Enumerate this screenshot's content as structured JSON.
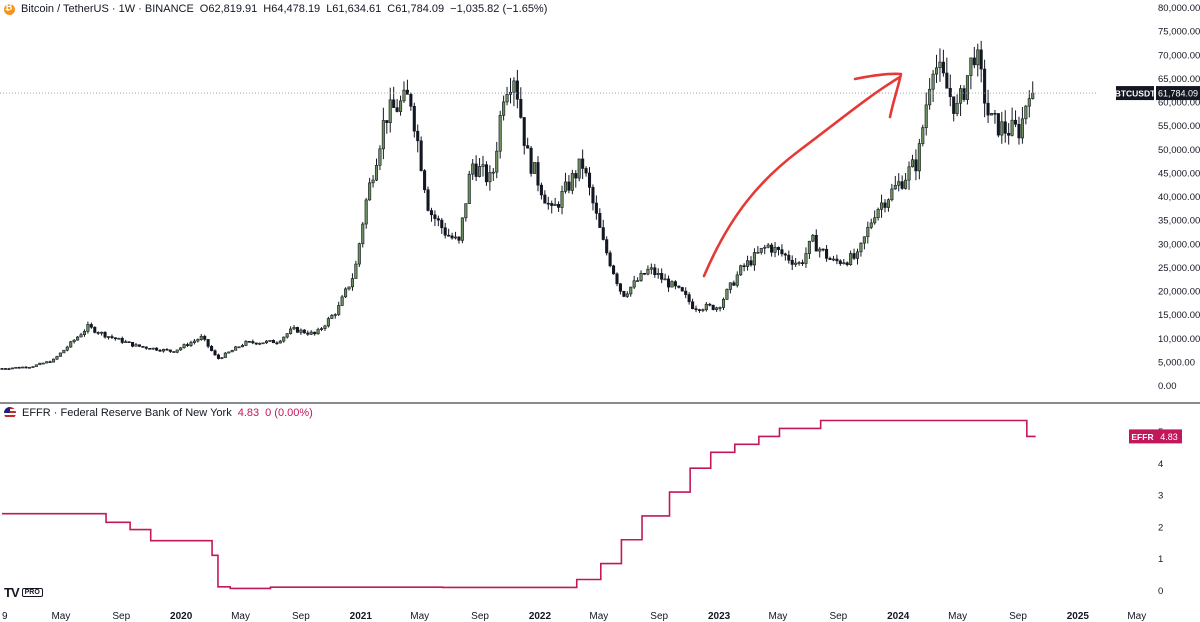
{
  "header": {
    "symbol": "Bitcoin / TetherUS · 1W · BINANCE",
    "open": "O62,819.91",
    "high": "H64,478.19",
    "low": "L61,634.61",
    "close": "C61,784.09",
    "change": "−1,035.82 (−1.65%)"
  },
  "indicator": {
    "name": "EFFR · Federal Reserve Bank of New York",
    "value": "4.83",
    "change": "0 (0.00%)"
  },
  "labels": {
    "price_tag_symbol": "BTCUSDT",
    "price_tag_value": "61,784.09",
    "effr_tag_symbol": "EFFR",
    "effr_tag_value": "4.83",
    "logo": "TV",
    "logo_pro": "PRO"
  },
  "colors": {
    "up_fill": "#6b8e5a",
    "down_fill": "#131722",
    "effr_line": "#c2185b",
    "arrow": "#e53935",
    "grid_text": "#131722",
    "price_tag_bg": "#131722",
    "effr_tag_bg": "#c2185b"
  },
  "chart_data": [
    {
      "type": "candlestick",
      "series_name": "BTCUSDT",
      "y_ticks": [
        "80,000.00",
        "75,000.00",
        "70,000.00",
        "65,000.00",
        "60,000.00",
        "55,000.00",
        "50,000.00",
        "45,000.00",
        "40,000.00",
        "35,000.00",
        "30,000.00",
        "25,000.00",
        "20,000.00",
        "15,000.00",
        "10,000.00",
        "5,000.00",
        "0.00"
      ],
      "ylim": [
        0,
        80000
      ],
      "x_ticks": [
        "9",
        "May",
        "Sep",
        "2020",
        "May",
        "Sep",
        "2021",
        "May",
        "Sep",
        "2022",
        "May",
        "Sep",
        "2023",
        "May",
        "Sep",
        "2024",
        "May",
        "Sep",
        "2025",
        "May"
      ],
      "x_tick_dates": [
        "2019-01-01",
        "2019-05-01",
        "2019-09-01",
        "2020-01-01",
        "2020-05-01",
        "2020-09-01",
        "2021-01-01",
        "2021-05-01",
        "2021-09-01",
        "2022-01-01",
        "2022-05-01",
        "2022-09-01",
        "2023-01-01",
        "2023-05-01",
        "2023-09-01",
        "2024-01-01",
        "2024-05-01",
        "2024-09-01",
        "2025-01-01",
        "2025-05-01"
      ],
      "last_price": 61784.09,
      "close_anchors": [
        {
          "date": "2019-01-01",
          "close": 3500
        },
        {
          "date": "2019-03-01",
          "close": 3900
        },
        {
          "date": "2019-04-15",
          "close": 5200
        },
        {
          "date": "2019-06-25",
          "close": 12300
        },
        {
          "date": "2019-08-01",
          "close": 10500
        },
        {
          "date": "2019-09-30",
          "close": 8300
        },
        {
          "date": "2019-12-15",
          "close": 7100
        },
        {
          "date": "2020-02-12",
          "close": 10100
        },
        {
          "date": "2020-03-15",
          "close": 5500
        },
        {
          "date": "2020-05-10",
          "close": 8900
        },
        {
          "date": "2020-07-15",
          "close": 9200
        },
        {
          "date": "2020-08-15",
          "close": 11800
        },
        {
          "date": "2020-10-01",
          "close": 10700
        },
        {
          "date": "2020-11-15",
          "close": 16000
        },
        {
          "date": "2020-12-20",
          "close": 24000
        },
        {
          "date": "2021-01-10",
          "close": 38000
        },
        {
          "date": "2021-02-20",
          "close": 57000
        },
        {
          "date": "2021-04-12",
          "close": 61000
        },
        {
          "date": "2021-05-20",
          "close": 37000
        },
        {
          "date": "2021-06-25",
          "close": 32000
        },
        {
          "date": "2021-07-20",
          "close": 30000
        },
        {
          "date": "2021-08-15",
          "close": 47000
        },
        {
          "date": "2021-09-25",
          "close": 43000
        },
        {
          "date": "2021-10-20",
          "close": 63000
        },
        {
          "date": "2021-11-10",
          "close": 66000
        },
        {
          "date": "2021-12-05",
          "close": 49000
        },
        {
          "date": "2022-01-25",
          "close": 36500
        },
        {
          "date": "2022-03-28",
          "close": 47000
        },
        {
          "date": "2022-05-10",
          "close": 30000
        },
        {
          "date": "2022-06-18",
          "close": 19000
        },
        {
          "date": "2022-08-12",
          "close": 24500
        },
        {
          "date": "2022-10-20",
          "close": 19200
        },
        {
          "date": "2022-11-10",
          "close": 16500
        },
        {
          "date": "2022-12-30",
          "close": 16500
        },
        {
          "date": "2023-02-15",
          "close": 24500
        },
        {
          "date": "2023-04-10",
          "close": 29500
        },
        {
          "date": "2023-06-15",
          "close": 25500
        },
        {
          "date": "2023-07-10",
          "close": 30500
        },
        {
          "date": "2023-08-20",
          "close": 26000
        },
        {
          "date": "2023-10-10",
          "close": 27000
        },
        {
          "date": "2023-11-15",
          "close": 37000
        },
        {
          "date": "2023-12-31",
          "close": 42300
        },
        {
          "date": "2024-02-10",
          "close": 47500
        },
        {
          "date": "2024-03-11",
          "close": 69000
        },
        {
          "date": "2024-05-01",
          "close": 58000
        },
        {
          "date": "2024-06-05",
          "close": 71000
        },
        {
          "date": "2024-07-05",
          "close": 56000
        },
        {
          "date": "2024-08-05",
          "close": 54000
        },
        {
          "date": "2024-09-06",
          "close": 54000
        },
        {
          "date": "2024-09-28",
          "close": 65500
        },
        {
          "date": "2024-10-07",
          "close": 61784.09
        }
      ]
    },
    {
      "type": "line",
      "series_name": "EFFR",
      "y_ticks": [
        "5",
        "4",
        "3",
        "2",
        "1",
        "0"
      ],
      "ylim": [
        -0.3,
        5.6
      ],
      "last_value": 4.83,
      "steps": [
        {
          "date": "2019-01-01",
          "value": 2.4
        },
        {
          "date": "2019-08-01",
          "value": 2.13
        },
        {
          "date": "2019-09-19",
          "value": 1.9
        },
        {
          "date": "2019-10-31",
          "value": 1.55
        },
        {
          "date": "2020-03-04",
          "value": 1.09
        },
        {
          "date": "2020-03-16",
          "value": 0.1
        },
        {
          "date": "2020-04-10",
          "value": 0.05
        },
        {
          "date": "2020-07-01",
          "value": 0.09
        },
        {
          "date": "2021-06-17",
          "value": 0.08
        },
        {
          "date": "2022-03-17",
          "value": 0.33
        },
        {
          "date": "2022-05-05",
          "value": 0.83
        },
        {
          "date": "2022-06-16",
          "value": 1.58
        },
        {
          "date": "2022-07-28",
          "value": 2.33
        },
        {
          "date": "2022-09-22",
          "value": 3.08
        },
        {
          "date": "2022-11-03",
          "value": 3.83
        },
        {
          "date": "2022-12-15",
          "value": 4.33
        },
        {
          "date": "2023-02-02",
          "value": 4.58
        },
        {
          "date": "2023-03-23",
          "value": 4.83
        },
        {
          "date": "2023-05-04",
          "value": 5.08
        },
        {
          "date": "2023-07-27",
          "value": 5.33
        },
        {
          "date": "2024-09-19",
          "value": 4.83
        },
        {
          "date": "2024-10-07",
          "value": 4.83
        }
      ]
    }
  ]
}
